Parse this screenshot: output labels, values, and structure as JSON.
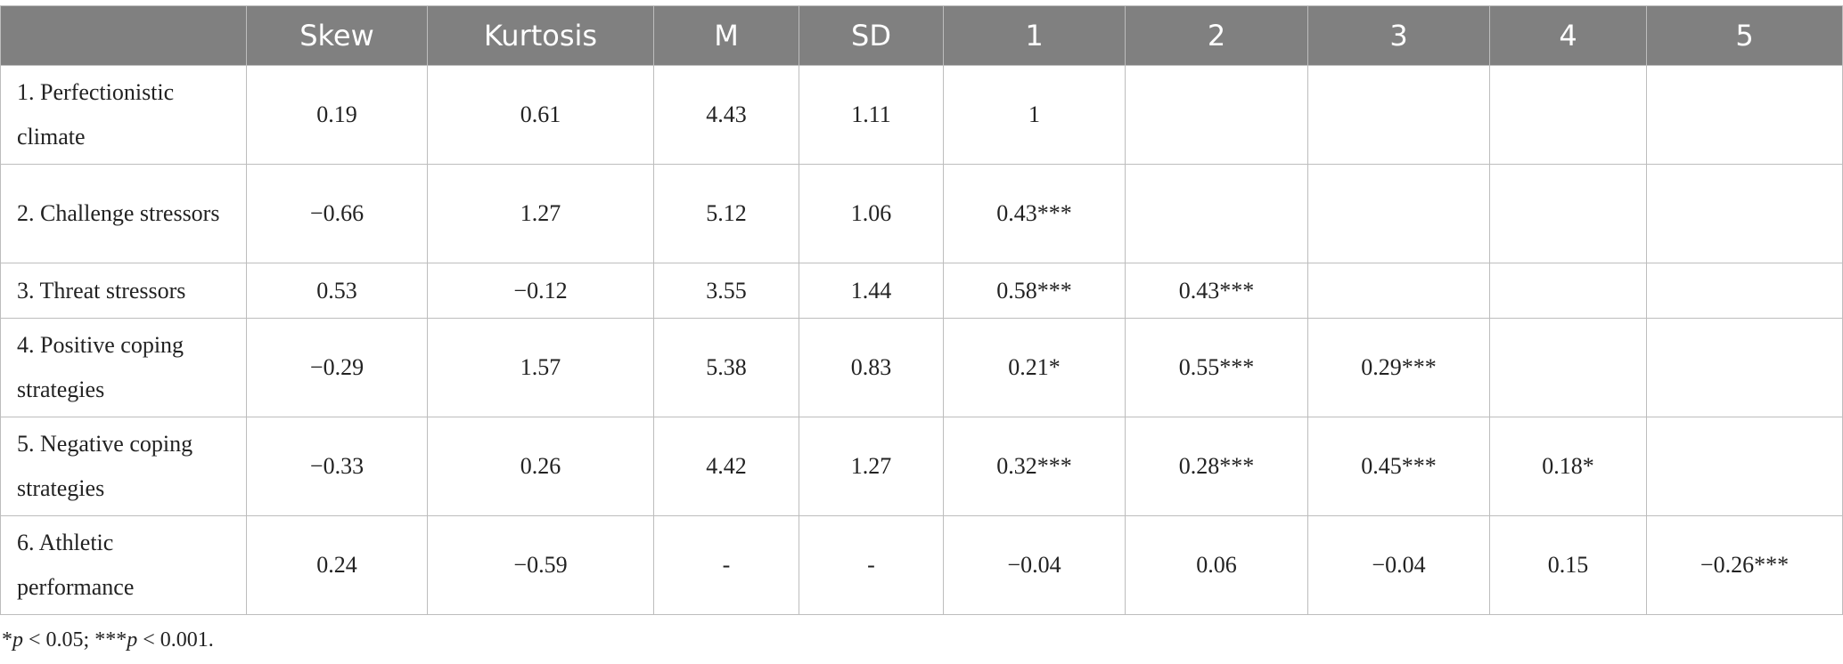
{
  "table": {
    "header": [
      null,
      "Skew",
      "Kurtosis",
      "M",
      "SD",
      "1",
      "2",
      "3",
      "4",
      "5"
    ],
    "rows": [
      [
        "1. Perfectionistic climate",
        "0.19",
        "0.61",
        "4.43",
        "1.11",
        "1",
        null,
        null,
        null,
        null
      ],
      [
        "2. Challenge stressors",
        "−0.66",
        "1.27",
        "5.12",
        "1.06",
        "0.43***",
        null,
        null,
        null,
        null
      ],
      [
        "3. Threat stressors",
        "0.53",
        "−0.12",
        "3.55",
        "1.44",
        "0.58***",
        "0.43***",
        null,
        null,
        null
      ],
      [
        "4. Positive coping strategies",
        "−0.29",
        "1.57",
        "5.38",
        "0.83",
        "0.21*",
        "0.55***",
        "0.29***",
        null,
        null
      ],
      [
        "5. Negative coping strategies",
        "−0.33",
        "0.26",
        "4.42",
        "1.27",
        "0.32***",
        "0.28***",
        "0.45***",
        "0.18*",
        null
      ],
      [
        "6. Athletic performance",
        "0.24",
        "−0.59",
        "-",
        "-",
        "−0.04",
        "0.06",
        "−0.04",
        "0.15",
        "−0.26***"
      ]
    ]
  },
  "footnote": {
    "parts": [
      "*",
      "p",
      " < 0.05; ***",
      "p",
      " < 0.001."
    ]
  }
}
